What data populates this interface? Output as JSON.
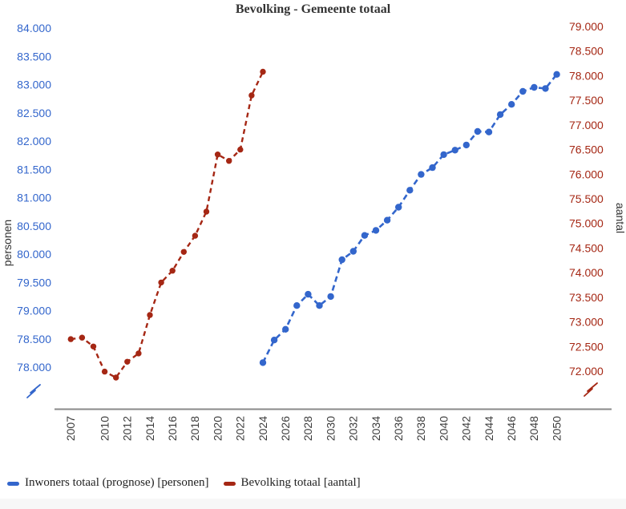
{
  "title": "Bevolking - Gemeente totaal",
  "colors": {
    "prognose_blue": "#3366CC",
    "bevolking_red": "#A52714",
    "axis_line_gray": "#8A8A8A",
    "x_label_color": "#3C3C3C",
    "axis_title_color": "#333333",
    "title_color": "#333333"
  },
  "axes": {
    "left": {
      "title": "personen",
      "color": "#3366CC",
      "has_break_symbol": true,
      "tick_labels": [
        "84.000",
        "83.500",
        "83.000",
        "82.500",
        "82.000",
        "81.500",
        "81.000",
        "80.500",
        "80.000",
        "79.500",
        "79.000",
        "78.500",
        "78.000"
      ]
    },
    "right": {
      "title": "aantal",
      "color": "#A52714",
      "has_break_symbol": true,
      "tick_labels": [
        "79.000",
        "78.500",
        "78.000",
        "77.500",
        "77.000",
        "76.500",
        "76.000",
        "75.500",
        "75.000",
        "74.500",
        "74.000",
        "73.500",
        "73.000",
        "72.500",
        "72.000"
      ]
    },
    "x": {
      "tick_labels": [
        "2007",
        "2010",
        "2012",
        "2014",
        "2016",
        "2018",
        "2020",
        "2022",
        "2024",
        "2026",
        "2028",
        "2030",
        "2032",
        "2034",
        "2036",
        "2038",
        "2040",
        "2042",
        "2044",
        "2046",
        "2048",
        "2050"
      ]
    }
  },
  "legend": {
    "items": [
      {
        "label": "Inwoners totaal (prognose) [personen]",
        "color": "#3366CC"
      },
      {
        "label": "Bevolking totaal [aantal]",
        "color": "#A52714"
      }
    ]
  },
  "chart_data": {
    "type": "line",
    "title": "Bevolking - Gemeente totaal",
    "grid": false,
    "legend_position": "bottom-left",
    "x_axis": {
      "tick_labels": [
        2007,
        2010,
        2012,
        2014,
        2016,
        2018,
        2020,
        2022,
        2024,
        2026,
        2028,
        2030,
        2032,
        2034,
        2036,
        2038,
        2040,
        2042,
        2044,
        2046,
        2048,
        2050
      ]
    },
    "y_left": {
      "label": "personen",
      "range": [
        78000,
        84000
      ],
      "tick_step": 500,
      "axis_break": true
    },
    "y_right": {
      "label": "aantal",
      "range": [
        72000,
        79000
      ],
      "tick_step": 500,
      "axis_break": true
    },
    "series": [
      {
        "name": "Inwoners totaal (prognose) [personen]",
        "color": "#3366CC",
        "axis": "left",
        "style": "dashed",
        "marker": "circle",
        "x": [
          2024,
          2025,
          2026,
          2027,
          2028,
          2029,
          2030,
          2031,
          2032,
          2033,
          2034,
          2035,
          2036,
          2037,
          2038,
          2039,
          2040,
          2041,
          2042,
          2043,
          2044,
          2045,
          2046,
          2047,
          2048,
          2049,
          2050
        ],
        "values": [
          78080,
          78480,
          78670,
          79090,
          79290,
          79090,
          79250,
          79900,
          80050,
          80330,
          80420,
          80600,
          80830,
          81130,
          81410,
          81530,
          81760,
          81840,
          81930,
          82170,
          82160,
          82470,
          82650,
          82880,
          82950,
          82930,
          83180
        ]
      },
      {
        "name": "Bevolking totaal [aantal]",
        "color": "#A52714",
        "axis": "right",
        "style": "dashed",
        "marker": "circle",
        "x": [
          2007,
          2008,
          2009,
          2010,
          2011,
          2012,
          2013,
          2014,
          2015,
          2016,
          2017,
          2018,
          2019,
          2020,
          2021,
          2022,
          2023,
          2024
        ],
        "values": [
          72650,
          72680,
          72500,
          71990,
          71870,
          72190,
          72360,
          73140,
          73800,
          74040,
          74420,
          74750,
          75240,
          76400,
          76270,
          76500,
          77600,
          78080
        ]
      }
    ]
  }
}
